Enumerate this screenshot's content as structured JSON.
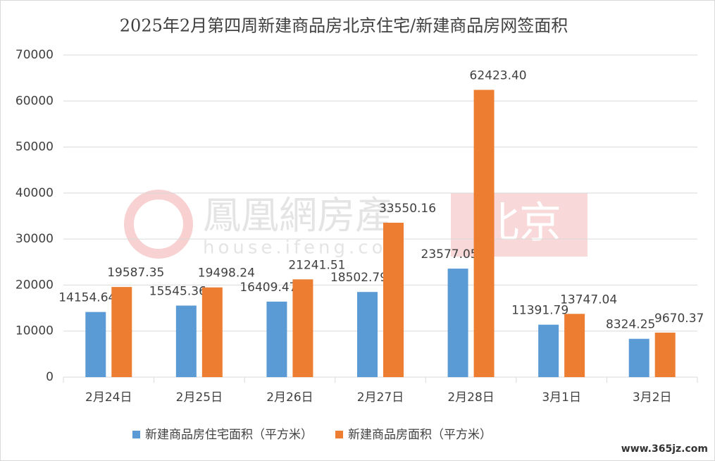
{
  "chart_data": {
    "type": "bar",
    "title": "2025年2月第四周新建商品房北京住宅/新建商品房网签面积",
    "categories": [
      "2月24日",
      "2月25日",
      "2月26日",
      "2月27日",
      "2月28日",
      "3月1日",
      "3月2日"
    ],
    "series": [
      {
        "name": "新建商品房住宅面积（平方米）",
        "color": "#5b9bd5",
        "values": [
          14154.64,
          15545.36,
          16409.47,
          18502.79,
          23577.05,
          11391.79,
          8324.25
        ],
        "value_labels": [
          "14154.64",
          "15545.36",
          "16409.47",
          "18502.79",
          "23577.05",
          "11391.79",
          "8324.25"
        ]
      },
      {
        "name": "新建商品房面积（平方米）",
        "color": "#ed7d31",
        "values": [
          19587.35,
          19498.24,
          21241.51,
          33550.16,
          62423.4,
          13747.04,
          9670.37
        ],
        "value_labels": [
          "19587.35",
          "19498.24",
          "21241.51",
          "33550.16",
          "62423.40",
          "13747.04",
          "9670.37"
        ]
      }
    ],
    "ylim": [
      0,
      70000
    ],
    "yticks": [
      0,
      10000,
      20000,
      30000,
      40000,
      50000,
      60000,
      70000
    ],
    "grid": true,
    "legend": "bottom"
  },
  "watermarks": [
    "鳳凰網房產",
    "北京",
    "house.ifeng.com",
    "www.365jz.com"
  ]
}
